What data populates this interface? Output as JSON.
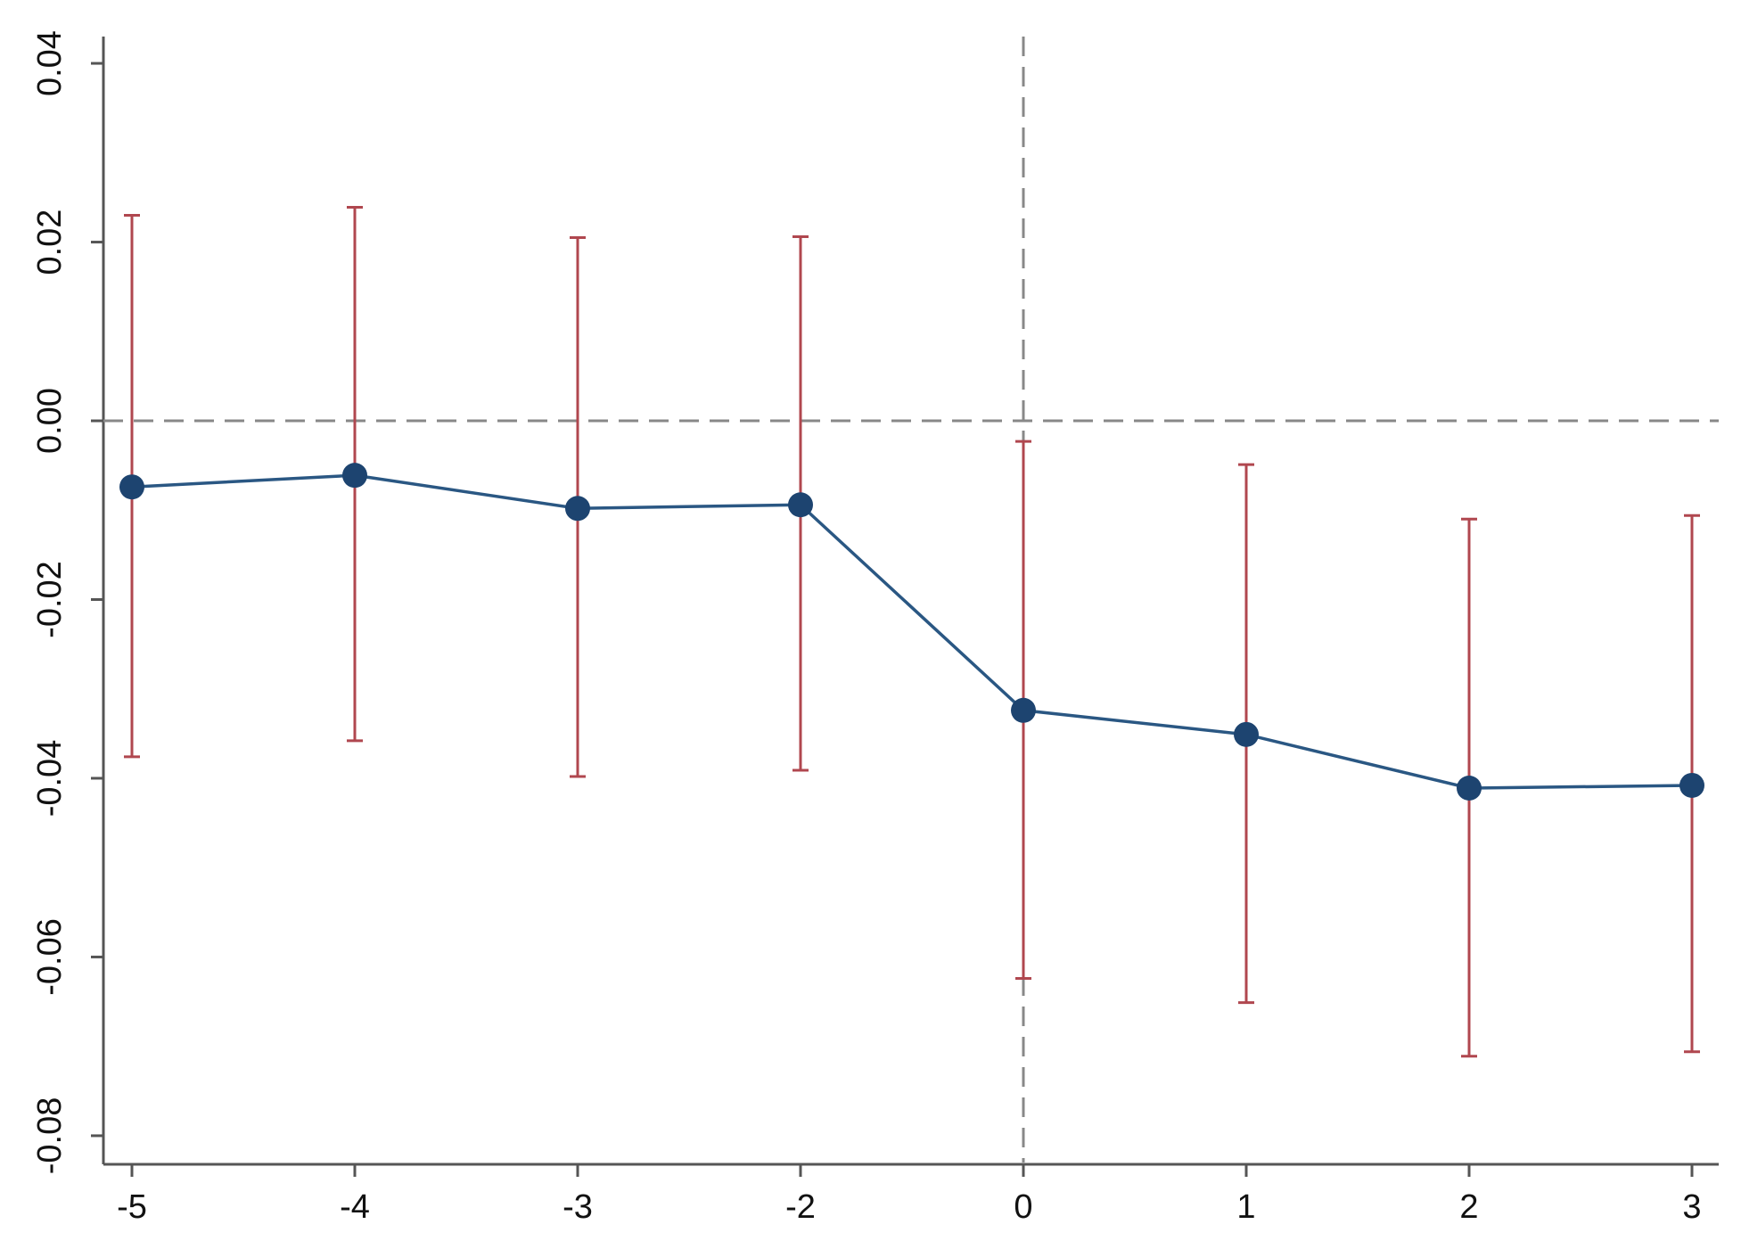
{
  "chart_data": {
    "type": "errorbar-line",
    "categories": [
      "-5",
      "-4",
      "-3",
      "-2",
      "0",
      "1",
      "2",
      "3"
    ],
    "series": [
      {
        "color": "#2a5783",
        "values": [
          -0.0074,
          -0.0061,
          -0.0098,
          -0.0094,
          -0.0324,
          -0.0351,
          -0.0411,
          -0.0408
        ]
      }
    ],
    "ci_lower": [
      -0.0376,
      -0.0358,
      -0.0398,
      -0.0391,
      -0.0624,
      -0.0651,
      -0.0711,
      -0.0706
    ],
    "ci_upper": [
      0.023,
      0.0239,
      0.0205,
      0.0206,
      -0.0023,
      -0.0049,
      -0.011,
      -0.0106
    ],
    "ci_color": "#b0474f",
    "ylim": [
      -0.083,
      0.043
    ],
    "yticks": [
      {
        "value": -0.08,
        "label": "-0.08"
      },
      {
        "value": -0.06,
        "label": "-0.06"
      },
      {
        "value": -0.04,
        "label": "-0.04"
      },
      {
        "value": -0.02,
        "label": "-0.02"
      },
      {
        "value": 0,
        "label": "0.00"
      },
      {
        "value": 0.02,
        "label": "0.02"
      },
      {
        "value": 0.04,
        "label": "0.04"
      }
    ],
    "hline": 0,
    "vline_category": 4,
    "grid": false
  }
}
